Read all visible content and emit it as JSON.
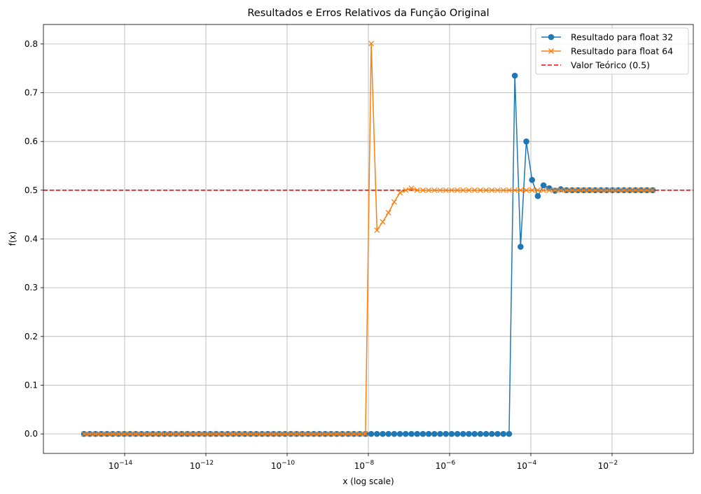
{
  "chart_data": {
    "type": "line",
    "title": "Resultados e Erros Relativos da Função Original",
    "xlabel": "x (log scale)",
    "ylabel": "f(x)",
    "x_scale": "log",
    "xlim": [
      1e-16,
      1
    ],
    "ylim": [
      -0.04,
      0.84
    ],
    "x_ticks": [
      {
        "value": 1e-14,
        "base": "10",
        "exp": "−14"
      },
      {
        "value": 1e-12,
        "base": "10",
        "exp": "−12"
      },
      {
        "value": 1e-10,
        "base": "10",
        "exp": "−10"
      },
      {
        "value": 1e-08,
        "base": "10",
        "exp": "−8"
      },
      {
        "value": 1e-06,
        "base": "10",
        "exp": "−6"
      },
      {
        "value": 0.0001,
        "base": "10",
        "exp": "−4"
      },
      {
        "value": 0.01,
        "base": "10",
        "exp": "−2"
      }
    ],
    "y_ticks": [
      "0.0",
      "0.1",
      "0.2",
      "0.3",
      "0.4",
      "0.5",
      "0.6",
      "0.7",
      "0.8"
    ],
    "grid": true,
    "legend_position": "top-right",
    "reference_line": {
      "name": "Valor Teórico (0.5)",
      "y": 0.5,
      "color": "#ff0000",
      "style": "dashed"
    },
    "series": [
      {
        "name": "Resultado para float 32",
        "color": "#1f77b4",
        "marker": "circle",
        "x_log10_range": [
          -15,
          -1
        ],
        "points_count": 100,
        "y_overrides": {
          "75": 0.735,
          "76": 0.384,
          "77": 0.6,
          "78": 0.521,
          "79": 0.488,
          "80": 0.51,
          "81": 0.504,
          "82": 0.499,
          "83": 0.502
        },
        "y_zero_until_index": 74,
        "y_tail": 0.5
      },
      {
        "name": "Resultado para float 64",
        "color": "#ff7f0e",
        "marker": "x",
        "x_log10_range": [
          -15,
          -1
        ],
        "points_count": 100,
        "y_overrides": {
          "50": 0.801,
          "51": 0.418,
          "52": 0.435,
          "53": 0.454,
          "54": 0.476,
          "55": 0.495,
          "56": 0.5,
          "57": 0.504
        },
        "y_zero_until_index": 49,
        "y_tail": 0.5
      }
    ]
  }
}
